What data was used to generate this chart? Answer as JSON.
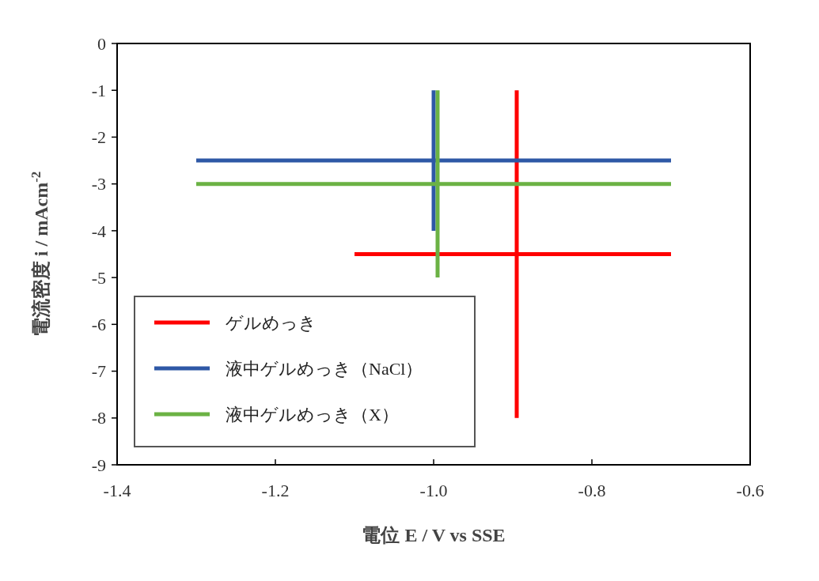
{
  "chart_data": {
    "type": "line",
    "xlabel": "電位  E / V vs SSE",
    "ylabel": "電流密度 i / mAcm$^{-2}$",
    "xlim": [
      -1.4,
      -0.6
    ],
    "xticks": [
      {
        "value": -1.4,
        "label": "-1.4"
      },
      {
        "value": -1.2,
        "label": "-1.2"
      },
      {
        "value": -1.0,
        "label": "-1.0"
      },
      {
        "value": -0.8,
        "label": "-0.8"
      },
      {
        "value": -0.6,
        "label": "-0.6"
      }
    ],
    "ylim": [
      -9,
      0
    ],
    "yticks": [
      0,
      -1,
      -2,
      -3,
      -4,
      -5,
      -6,
      -7,
      -8,
      -9
    ],
    "grid": false,
    "legend": "bottom left",
    "marker": "none",
    "line_style": "solid",
    "series": [
      {
        "name": "ゲルめっき",
        "color": "#ff0000",
        "x": [
          -1.1,
          -0.7,
          null,
          -0.895,
          -0.895
        ],
        "values": [
          -4.5,
          -4.5,
          null,
          -1,
          -8
        ]
      },
      {
        "name": "液中ゲルめっき（NaCl）",
        "color": "#2e58a6",
        "x": [
          -1.3,
          -0.7,
          null,
          -1.0,
          -1.0
        ],
        "values": [
          -2.5,
          -2.5,
          null,
          -1,
          -4
        ]
      },
      {
        "name": "液中ゲルめっき（X）",
        "color": "#6bb244",
        "x": [
          -1.3,
          -0.7,
          null,
          -0.995,
          -0.995
        ],
        "values": [
          -3,
          -3,
          null,
          -1,
          -5
        ]
      }
    ]
  }
}
